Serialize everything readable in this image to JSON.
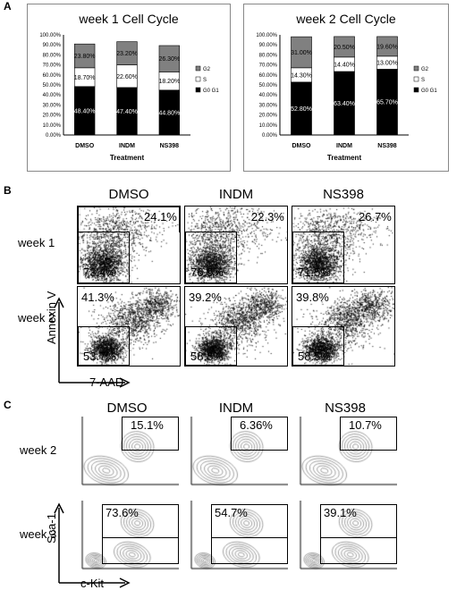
{
  "panel_labels": {
    "a": "A",
    "b": "B",
    "c": "C"
  },
  "panel_a": {
    "legend": [
      {
        "label": "G2",
        "color": "#808080"
      },
      {
        "label": "S",
        "color": "#ffffff"
      },
      {
        "label": "G0 G1",
        "color": "#000000"
      }
    ],
    "xlabel": "Treatment",
    "y_ticks": [
      "100.00%",
      "90.00%",
      "80.00%",
      "70.00%",
      "60.00%",
      "50.00%",
      "40.00%",
      "30.00%",
      "20.00%",
      "10.00%",
      "0.00%"
    ]
  },
  "panel_b": {
    "columns": [
      "DMSO",
      "INDM",
      "NS398"
    ],
    "rows": [
      "week 1",
      "week 2"
    ],
    "y_axis_label": "Annexin V",
    "x_axis_label": "7-AAD",
    "week1_upper": [
      "24.1%",
      "22.3%",
      "26.7%"
    ],
    "week1_lower": [
      "73.4%",
      "76.9%",
      "71.5%"
    ],
    "week2_upper": [
      "41.3%",
      "39.2%",
      "39.8%"
    ],
    "week2_lower": [
      "53.7%",
      "58.8%",
      "58.5%"
    ]
  },
  "panel_c": {
    "columns": [
      "DMSO",
      "INDM",
      "NS398"
    ],
    "rows": [
      "week 2",
      "week 3"
    ],
    "y_axis_label": "Sca-1",
    "x_axis_label": "c-Kit",
    "week2_pct": [
      "15.1%",
      "6.36%",
      "10.7%"
    ],
    "week3_pct": [
      "73.6%",
      "54.7%",
      "39.1%"
    ]
  },
  "chart_data": [
    {
      "type": "bar",
      "stacked": true,
      "title": "week 1 Cell Cycle",
      "xlabel": "Treatment",
      "ylabel": "",
      "ylim": [
        0,
        100
      ],
      "categories": [
        "DMSO",
        "INDM",
        "NS398"
      ],
      "series": [
        {
          "name": "G0 G1",
          "values": [
            48.4,
            47.4,
            44.8
          ],
          "labels": [
            "48.40%",
            "47.40%",
            "44.80%"
          ]
        },
        {
          "name": "S",
          "values": [
            18.7,
            22.6,
            18.2
          ],
          "labels": [
            "18.70%",
            "22.60%",
            "18.20%"
          ]
        },
        {
          "name": "G2",
          "values": [
            23.8,
            23.2,
            26.3
          ],
          "labels": [
            "23.80%",
            "23.20%",
            "26.30%"
          ]
        }
      ],
      "legend": "right"
    },
    {
      "type": "bar",
      "stacked": true,
      "title": "week 2 Cell Cycle",
      "xlabel": "Treatment",
      "ylabel": "",
      "ylim": [
        0,
        100
      ],
      "categories": [
        "DMSO",
        "INDM",
        "NS398"
      ],
      "series": [
        {
          "name": "G0 G1",
          "values": [
            52.8,
            63.4,
            65.7
          ],
          "labels": [
            "52.80%",
            "63.40%",
            "65.70%"
          ]
        },
        {
          "name": "S",
          "values": [
            14.3,
            14.4,
            13.0
          ],
          "labels": [
            "14.30%",
            "14.40%",
            "13.00%"
          ]
        },
        {
          "name": "G2",
          "values": [
            31.0,
            20.5,
            19.6
          ],
          "labels": [
            "31.00%",
            "20.50%",
            "19.60%"
          ]
        }
      ],
      "legend": "right"
    }
  ]
}
